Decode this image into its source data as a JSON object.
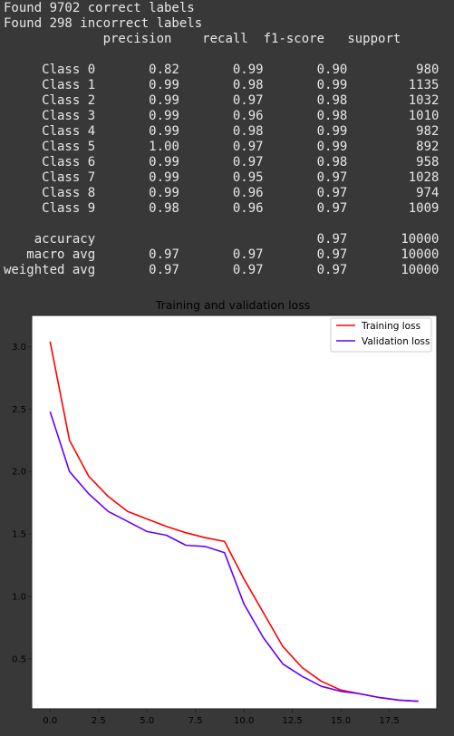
{
  "output": {
    "summary": [
      "Found 9702 correct labels",
      "Found 298 incorrect labels"
    ],
    "report_header": [
      "precision",
      "recall",
      "f1-score",
      "support"
    ],
    "class_rows": [
      {
        "label": "Class 0",
        "precision": "0.82",
        "recall": "0.99",
        "f1": "0.90",
        "support": "980"
      },
      {
        "label": "Class 1",
        "precision": "0.99",
        "recall": "0.98",
        "f1": "0.99",
        "support": "1135"
      },
      {
        "label": "Class 2",
        "precision": "0.99",
        "recall": "0.97",
        "f1": "0.98",
        "support": "1032"
      },
      {
        "label": "Class 3",
        "precision": "0.99",
        "recall": "0.96",
        "f1": "0.98",
        "support": "1010"
      },
      {
        "label": "Class 4",
        "precision": "0.99",
        "recall": "0.98",
        "f1": "0.99",
        "support": "982"
      },
      {
        "label": "Class 5",
        "precision": "1.00",
        "recall": "0.97",
        "f1": "0.99",
        "support": "892"
      },
      {
        "label": "Class 6",
        "precision": "0.99",
        "recall": "0.97",
        "f1": "0.98",
        "support": "958"
      },
      {
        "label": "Class 7",
        "precision": "0.99",
        "recall": "0.95",
        "f1": "0.97",
        "support": "1028"
      },
      {
        "label": "Class 8",
        "precision": "0.99",
        "recall": "0.96",
        "f1": "0.97",
        "support": "974"
      },
      {
        "label": "Class 9",
        "precision": "0.98",
        "recall": "0.96",
        "f1": "0.97",
        "support": "1009"
      }
    ],
    "summary_rows": [
      {
        "label": "accuracy",
        "precision": "",
        "recall": "",
        "f1": "0.97",
        "support": "10000"
      },
      {
        "label": "macro avg",
        "precision": "0.97",
        "recall": "0.97",
        "f1": "0.97",
        "support": "10000"
      },
      {
        "label": "weighted avg",
        "precision": "0.97",
        "recall": "0.97",
        "f1": "0.97",
        "support": "10000"
      }
    ]
  },
  "colors": {
    "background": "#383838",
    "console_text": "#e8e8e8",
    "training": "#ff0000",
    "validation": "#6600ff"
  },
  "chart_data": {
    "type": "line",
    "title": "Training and validation loss",
    "xlabel": "",
    "ylabel": "",
    "x": [
      0,
      1,
      2,
      3,
      4,
      5,
      6,
      7,
      8,
      9,
      10,
      11,
      12,
      13,
      14,
      15,
      16,
      17,
      18,
      19
    ],
    "xlim": [
      -0.95,
      19.95
    ],
    "ylim": [
      0.1,
      3.25
    ],
    "xticks": [
      "0.0",
      "2.5",
      "5.0",
      "7.5",
      "10.0",
      "12.5",
      "15.0",
      "17.5"
    ],
    "xtick_values": [
      0,
      2.5,
      5,
      7.5,
      10,
      12.5,
      15,
      17.5
    ],
    "yticks": [
      "0.5",
      "1.0",
      "1.5",
      "2.0",
      "2.5",
      "3.0"
    ],
    "ytick_values": [
      0.5,
      1.0,
      1.5,
      2.0,
      2.5,
      3.0
    ],
    "grid": false,
    "legend_position": "top-right",
    "series": [
      {
        "name": "Training loss",
        "color": "#ff0000",
        "values": [
          3.04,
          2.25,
          1.96,
          1.8,
          1.68,
          1.62,
          1.56,
          1.51,
          1.47,
          1.44,
          1.14,
          0.87,
          0.6,
          0.43,
          0.32,
          0.25,
          0.22,
          0.19,
          0.17,
          0.16
        ]
      },
      {
        "name": "Validation loss",
        "color": "#6600ff",
        "values": [
          2.48,
          2.0,
          1.82,
          1.68,
          1.6,
          1.52,
          1.49,
          1.41,
          1.4,
          1.35,
          0.94,
          0.67,
          0.46,
          0.36,
          0.28,
          0.24,
          0.22,
          0.19,
          0.17,
          0.16
        ]
      }
    ]
  }
}
